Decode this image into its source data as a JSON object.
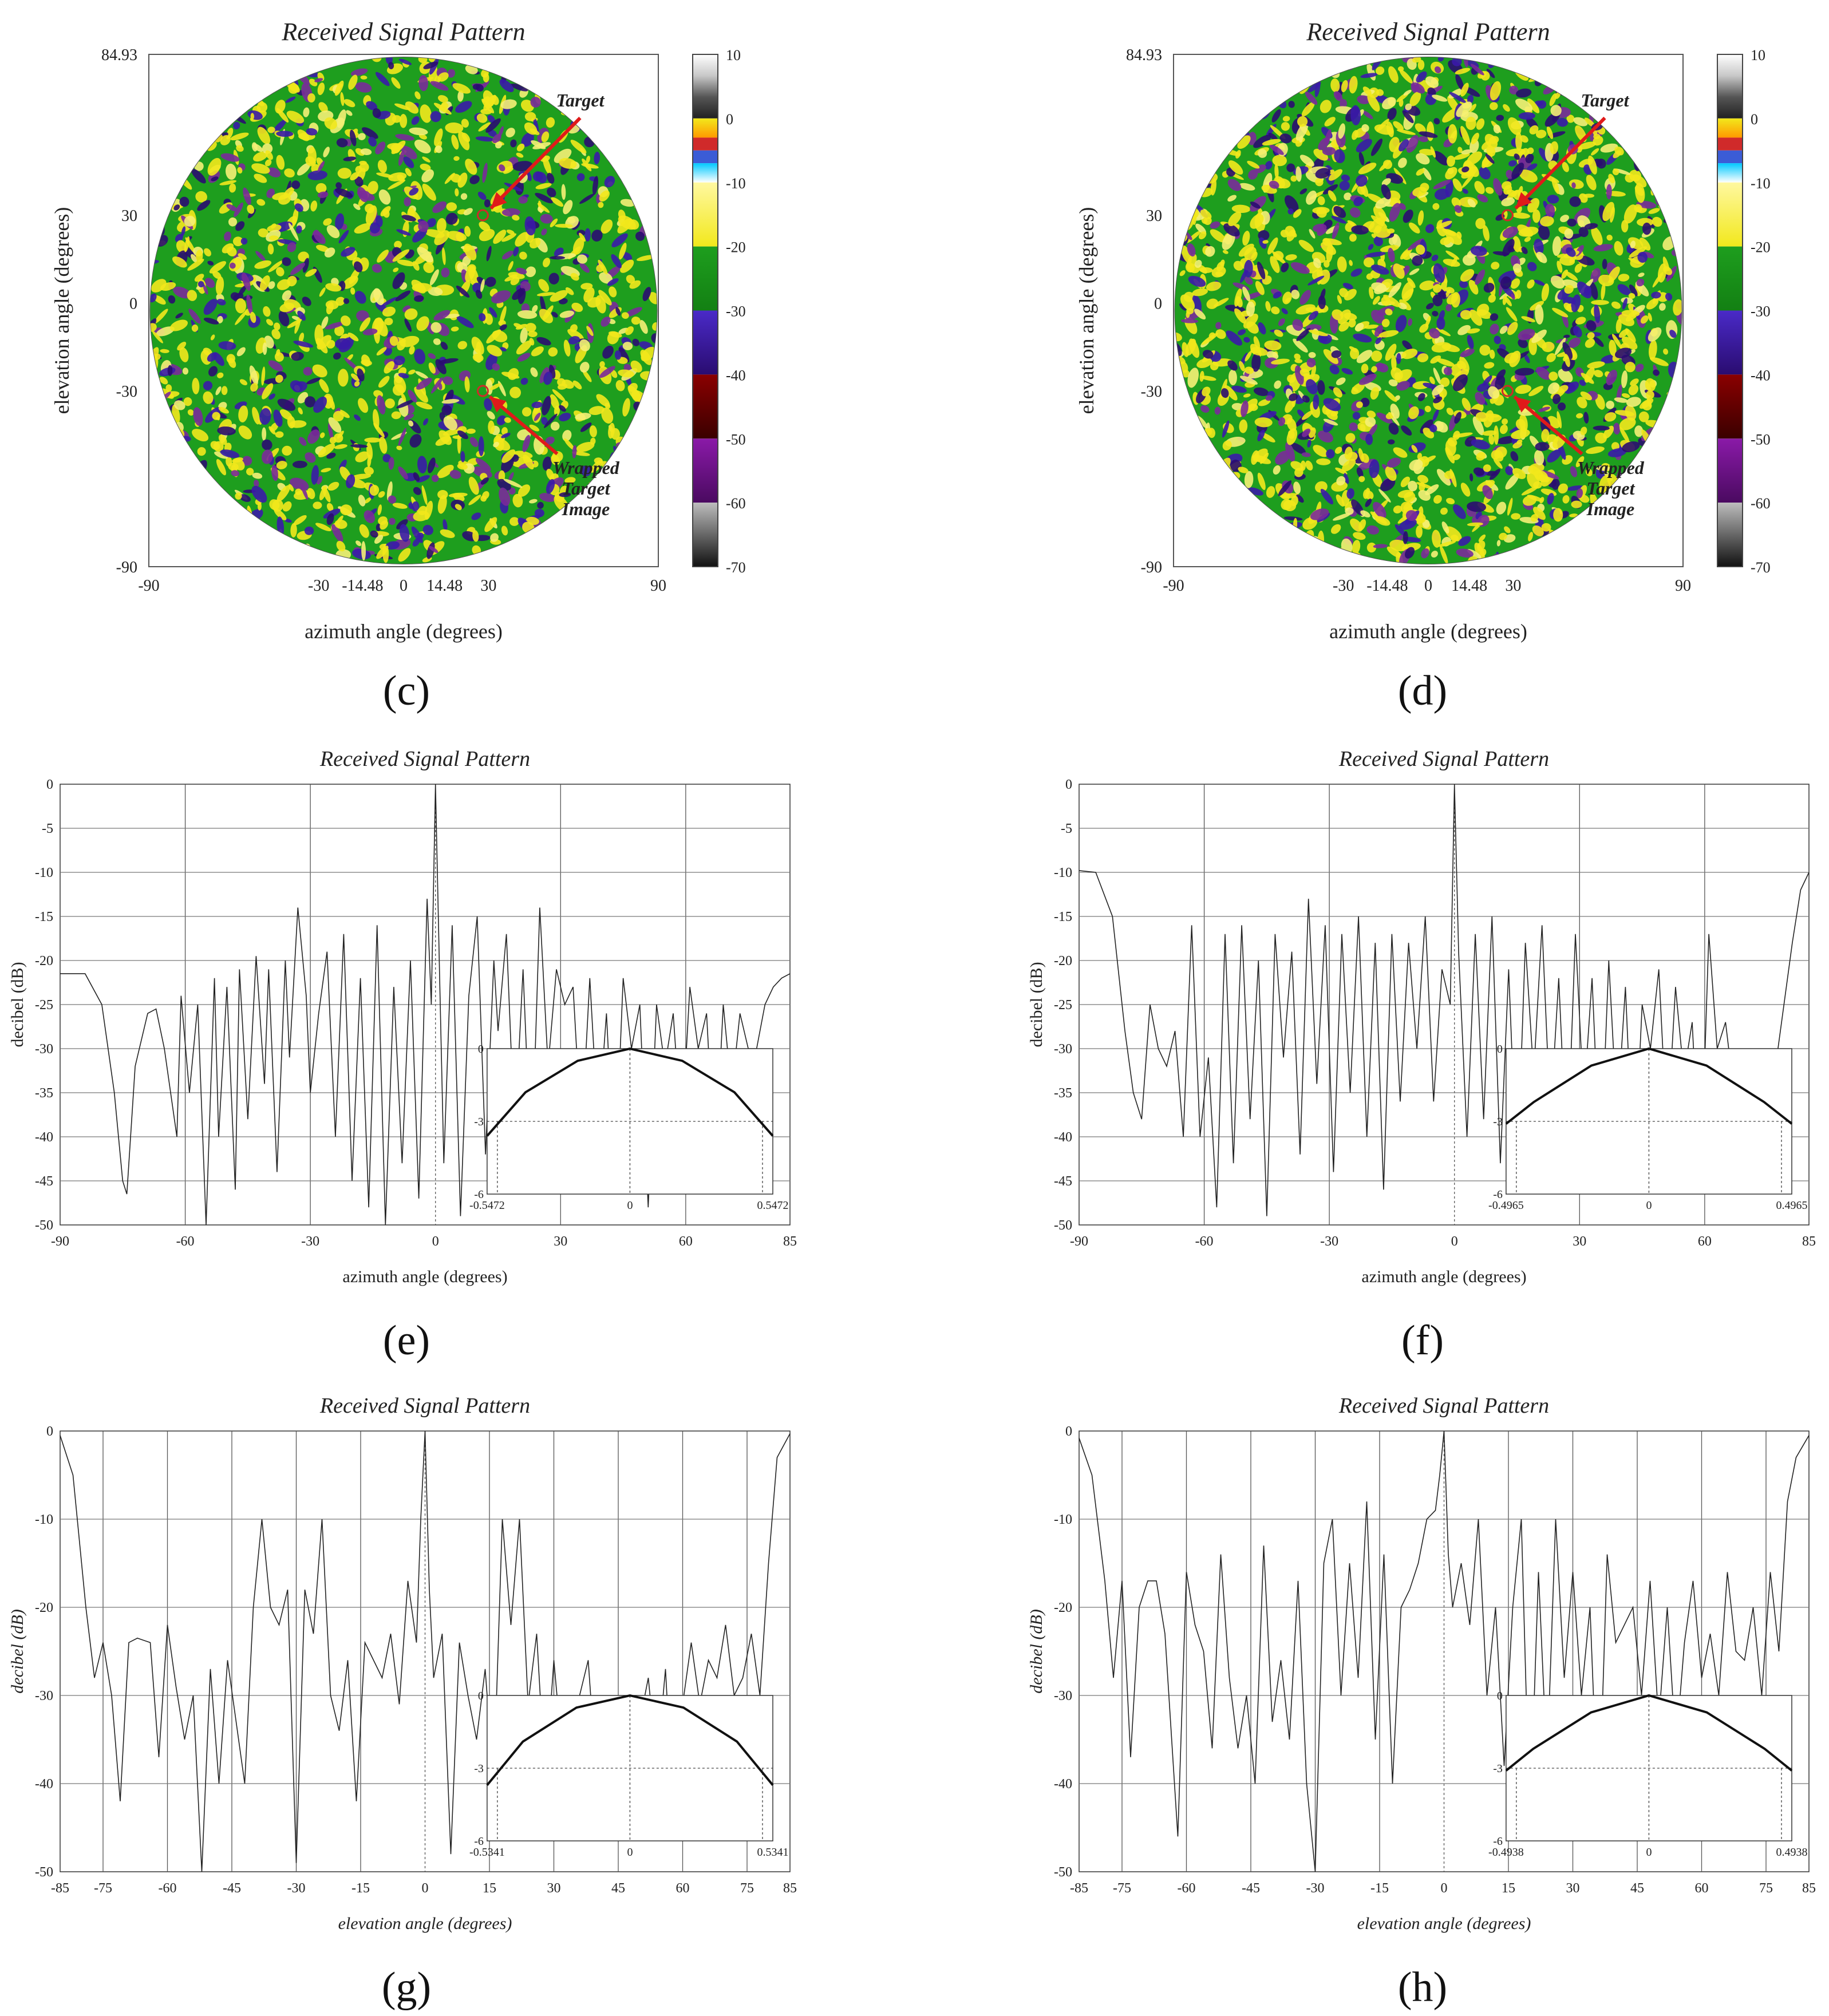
{
  "figure": {
    "panels": [
      "c",
      "d",
      "e",
      "f",
      "g",
      "h"
    ]
  },
  "chart_data": [
    {
      "id": "c",
      "type": "heatmap",
      "caption": "(c)",
      "title": "Received Signal Pattern",
      "xlabel": "azimuth angle (degrees)",
      "ylabel": "elevation angle (degrees)",
      "xlim": [
        -90,
        90
      ],
      "ylim": [
        -90,
        84.93
      ],
      "xticks": [
        -90,
        -30,
        -14.48,
        0,
        14.48,
        30,
        90
      ],
      "yticks": [
        84.93,
        30,
        0,
        -30,
        -90
      ],
      "colorbar": {
        "min": -70,
        "max": 10,
        "ticks": [
          10,
          0,
          -10,
          -20,
          -30,
          -40,
          -50,
          -60,
          -70
        ]
      },
      "colormap": [
        "#111111",
        "#a8a8a8",
        "#6a0a8e",
        "#5b0000",
        "#3a1aa8",
        "#1e9e1e",
        "#f2e81c",
        "#d02a2a",
        "#3b5cd6",
        "#fff8c8",
        "#ffffff"
      ],
      "annotations": [
        {
          "text": "Target",
          "point": [
            28,
            30
          ],
          "arrow_color": "#e01a1a"
        },
        {
          "text_lines": [
            "Wrapped",
            "Target",
            "Image"
          ],
          "point": [
            28,
            -30
          ],
          "arrow_color": "#e01a1a"
        }
      ],
      "markers": [
        {
          "x": 28,
          "y": 30
        },
        {
          "x": 28,
          "y": -30
        }
      ]
    },
    {
      "id": "d",
      "type": "heatmap",
      "caption": "(d)",
      "title": "Received Signal Pattern",
      "xlabel": "azimuth angle (degrees)",
      "ylabel": "elevation angle (degrees)",
      "xlim": [
        -90,
        90
      ],
      "ylim": [
        -90,
        84.93
      ],
      "xticks": [
        -90,
        -30,
        -14.48,
        0,
        14.48,
        30,
        90
      ],
      "yticks": [
        84.93,
        30,
        0,
        -30,
        -90
      ],
      "colorbar": {
        "min": -70,
        "max": 10,
        "ticks": [
          10,
          0,
          -10,
          -20,
          -30,
          -40,
          -50,
          -60,
          -70
        ]
      },
      "colormap": [
        "#111111",
        "#a8a8a8",
        "#6a0a8e",
        "#5b0000",
        "#3a1aa8",
        "#1e9e1e",
        "#f2e81c",
        "#d02a2a",
        "#3b5cd6",
        "#fff8c8",
        "#ffffff"
      ],
      "annotations": [
        {
          "text": "Target",
          "point": [
            28,
            30
          ],
          "arrow_color": "#e01a1a"
        },
        {
          "text_lines": [
            "Wrapped",
            "Target",
            "Image"
          ],
          "point": [
            28,
            -30
          ],
          "arrow_color": "#e01a1a"
        }
      ],
      "markers": [
        {
          "x": 28,
          "y": 30
        },
        {
          "x": 28,
          "y": -30
        }
      ]
    },
    {
      "id": "e",
      "type": "line",
      "caption": "(e)",
      "title": "Received Signal Pattern",
      "xlabel": "azimuth angle (degrees)",
      "ylabel": "decibel (dB)",
      "italic_labels": false,
      "xlim": [
        -90,
        85
      ],
      "ylim": [
        -50,
        0
      ],
      "xticks": [
        -90,
        -60,
        -30,
        0,
        30,
        60,
        85
      ],
      "yticks": [
        0,
        -5,
        -10,
        -15,
        -20,
        -25,
        -30,
        -35,
        -40,
        -45,
        -50
      ],
      "series": [
        {
          "x": [
            -90,
            -84,
            -80,
            -77,
            -75,
            -74,
            -72,
            -69,
            -67,
            -65,
            -62,
            -61,
            -59,
            -57,
            -55,
            -53,
            -52,
            -50,
            -48,
            -47,
            -45,
            -43,
            -41,
            -40,
            -38,
            -36,
            -35,
            -33,
            -31,
            -30,
            -28,
            -26,
            -24,
            -22,
            -20,
            -18,
            -16,
            -14,
            -12,
            -10,
            -8,
            -6,
            -4,
            -2,
            -1,
            0,
            1,
            2,
            4,
            6,
            8,
            10,
            12,
            14,
            15,
            17,
            19,
            21,
            23,
            25,
            27,
            29,
            31,
            33,
            35,
            37,
            39,
            41,
            43,
            45,
            47,
            49,
            51,
            53,
            55,
            57,
            59,
            61,
            63,
            65,
            67,
            69,
            71,
            73,
            75,
            77,
            79,
            81,
            83,
            85
          ],
          "values": [
            -21.5,
            -21.5,
            -25,
            -35,
            -45,
            -46.5,
            -32,
            -26,
            -25.5,
            -30,
            -40,
            -24,
            -35,
            -25,
            -50,
            -22,
            -40,
            -23,
            -46,
            -21,
            -38,
            -19.5,
            -34,
            -21,
            -44,
            -20,
            -31,
            -14,
            -24,
            -35,
            -26,
            -19,
            -40,
            -17,
            -45,
            -22,
            -48,
            -16,
            -50,
            -23,
            -43,
            -20,
            -47,
            -13,
            -25,
            0,
            -22,
            -43,
            -16,
            -49,
            -24,
            -15,
            -42,
            -20,
            -28,
            -17,
            -40,
            -21,
            -44,
            -14,
            -32,
            -21,
            -25,
            -23,
            -40,
            -22,
            -39,
            -26,
            -45,
            -22,
            -30,
            -25,
            -48,
            -25,
            -32,
            -26,
            -40,
            -23,
            -30,
            -26,
            -44,
            -25,
            -35,
            -26,
            -30,
            -30,
            -25,
            -23,
            -22,
            -21.5
          ]
        }
      ],
      "inset": {
        "xlim": [
          -0.5472,
          0.5472
        ],
        "ylim": [
          -6,
          0
        ],
        "xticks": [
          -0.5472,
          0,
          0.5472
        ],
        "yticks": [
          0,
          -3,
          -6
        ],
        "x": [
          -0.5472,
          -0.4,
          -0.2,
          0,
          0.2,
          0.4,
          0.5472
        ],
        "values": [
          -3.6,
          -1.8,
          -0.5,
          0,
          -0.5,
          -1.8,
          -3.6
        ]
      }
    },
    {
      "id": "f",
      "type": "line",
      "caption": "(f)",
      "title": "Received Signal Pattern",
      "xlabel": "azimuth angle (degrees)",
      "ylabel": "decibel (dB)",
      "italic_labels": false,
      "xlim": [
        -90,
        85
      ],
      "ylim": [
        -50,
        0
      ],
      "xticks": [
        -90,
        -60,
        -30,
        0,
        30,
        60,
        85
      ],
      "yticks": [
        0,
        -5,
        -10,
        -15,
        -20,
        -25,
        -30,
        -35,
        -40,
        -45,
        -50
      ],
      "series": [
        {
          "x": [
            -90,
            -86,
            -82,
            -79,
            -77,
            -75,
            -73,
            -71,
            -69,
            -67,
            -65,
            -63,
            -61,
            -59,
            -57,
            -55,
            -53,
            -51,
            -49,
            -47,
            -45,
            -43,
            -41,
            -39,
            -37,
            -35,
            -33,
            -31,
            -29,
            -27,
            -25,
            -23,
            -21,
            -19,
            -17,
            -15,
            -13,
            -11,
            -9,
            -7,
            -5,
            -3,
            -1,
            0,
            1,
            3,
            5,
            7,
            9,
            11,
            13,
            15,
            17,
            19,
            21,
            23,
            25,
            27,
            29,
            31,
            33,
            35,
            37,
            39,
            41,
            43,
            45,
            47,
            49,
            51,
            53,
            55,
            57,
            59,
            61,
            63,
            65,
            67,
            69,
            71,
            73,
            75,
            77,
            79,
            81,
            83,
            85
          ],
          "values": [
            -9.8,
            -10,
            -15,
            -28,
            -35,
            -38,
            -25,
            -30,
            -32,
            -28,
            -40,
            -16,
            -40,
            -31,
            -48,
            -17,
            -43,
            -16,
            -38,
            -20,
            -49,
            -17,
            -31,
            -19,
            -42,
            -13,
            -34,
            -16,
            -44,
            -17,
            -35,
            -15,
            -40,
            -18,
            -46,
            -17,
            -36,
            -18,
            -30,
            -15,
            -36,
            -21,
            -25,
            0,
            -19,
            -40,
            -17,
            -38,
            -15,
            -43,
            -21,
            -45,
            -18,
            -33,
            -16,
            -38,
            -22,
            -43,
            -17,
            -36,
            -22,
            -44,
            -20,
            -38,
            -23,
            -45,
            -25,
            -30,
            -21,
            -40,
            -23,
            -33,
            -27,
            -46,
            -17,
            -30,
            -27,
            -35,
            -30,
            -33,
            -32,
            -34,
            -32,
            -25,
            -18,
            -12,
            -10
          ]
        }
      ],
      "inset": {
        "xlim": [
          -0.4965,
          0.4965
        ],
        "ylim": [
          -6,
          0
        ],
        "xticks": [
          -0.4965,
          0,
          0.4965
        ],
        "yticks": [
          0,
          -3,
          -6
        ],
        "x": [
          -0.4965,
          -0.4,
          -0.2,
          0,
          0.2,
          0.4,
          0.4965
        ],
        "values": [
          -3.1,
          -2.2,
          -0.7,
          0,
          -0.7,
          -2.2,
          -3.1
        ]
      }
    },
    {
      "id": "g",
      "type": "line",
      "caption": "(g)",
      "title": "Received Signal Pattern",
      "xlabel": "elevation angle (degrees)",
      "ylabel": "decibel (dB)",
      "italic_labels": true,
      "xlim": [
        -85,
        85
      ],
      "ylim": [
        -50,
        0
      ],
      "xticks": [
        -85,
        -75,
        -60,
        -45,
        -30,
        -15,
        0,
        15,
        30,
        45,
        60,
        75,
        85
      ],
      "yticks": [
        0,
        -10,
        -20,
        -30,
        -40,
        -50
      ],
      "series": [
        {
          "x": [
            -85,
            -82,
            -79,
            -77,
            -75,
            -73,
            -71,
            -69,
            -67,
            -64,
            -62,
            -60,
            -58,
            -56,
            -54,
            -52,
            -50,
            -48,
            -46,
            -44,
            -42,
            -40,
            -38,
            -36,
            -34,
            -32,
            -30,
            -28,
            -26,
            -24,
            -22,
            -20,
            -18,
            -16,
            -14,
            -12,
            -10,
            -8,
            -6,
            -4,
            -2,
            -1,
            0,
            1,
            2,
            4,
            6,
            8,
            10,
            12,
            14,
            16,
            18,
            20,
            22,
            24,
            26,
            28,
            30,
            32,
            34,
            36,
            38,
            40,
            42,
            44,
            46,
            48,
            50,
            52,
            54,
            56,
            58,
            60,
            62,
            64,
            66,
            68,
            70,
            72,
            74,
            76,
            78,
            80,
            82,
            85
          ],
          "values": [
            -0.5,
            -5,
            -20,
            -28,
            -24,
            -30,
            -42,
            -24,
            -23.5,
            -24,
            -37,
            -22,
            -29,
            -35,
            -30,
            -50,
            -27,
            -40,
            -26,
            -33,
            -40,
            -20,
            -10,
            -20,
            -22,
            -18,
            -49,
            -18,
            -23,
            -10,
            -30,
            -34,
            -26,
            -42,
            -24,
            -26,
            -28,
            -23,
            -31,
            -17,
            -24,
            -10,
            0,
            -18,
            -28,
            -23,
            -48,
            -24,
            -30,
            -35,
            -27,
            -40,
            -10,
            -22,
            -10,
            -31,
            -23,
            -40,
            -26,
            -37,
            -33,
            -30,
            -26,
            -40,
            -30,
            -42,
            -30,
            -46,
            -33,
            -28,
            -38,
            -27,
            -45,
            -31,
            -24,
            -31,
            -26,
            -28,
            -22,
            -30,
            -28,
            -23,
            -30,
            -15,
            -3,
            -0.3
          ]
        }
      ],
      "inset": {
        "xlim": [
          -0.5341,
          0.5341
        ],
        "ylim": [
          -6,
          0
        ],
        "xticks": [
          -0.5341,
          0,
          0.5341
        ],
        "yticks": [
          0,
          -3,
          -6
        ],
        "x": [
          -0.5341,
          -0.4,
          -0.2,
          0,
          0.2,
          0.4,
          0.5341
        ],
        "values": [
          -3.7,
          -1.9,
          -0.5,
          0,
          -0.5,
          -1.9,
          -3.7
        ]
      }
    },
    {
      "id": "h",
      "type": "line",
      "caption": "(h)",
      "title": "Received Signal Pattern",
      "xlabel": "elevation angle (degrees)",
      "ylabel": "decibel (dB)",
      "italic_labels": true,
      "xlim": [
        -85,
        85
      ],
      "ylim": [
        -50,
        0
      ],
      "xticks": [
        -85,
        -75,
        -60,
        -45,
        -30,
        -15,
        0,
        15,
        30,
        45,
        60,
        75,
        85
      ],
      "yticks": [
        0,
        -10,
        -20,
        -30,
        -40,
        -50
      ],
      "series": [
        {
          "x": [
            -85,
            -82,
            -79,
            -77,
            -75,
            -73,
            -71,
            -69,
            -67,
            -65,
            -62,
            -60,
            -58,
            -56,
            -54,
            -52,
            -50,
            -48,
            -46,
            -44,
            -42,
            -40,
            -38,
            -36,
            -34,
            -32,
            -30,
            -28,
            -26,
            -24,
            -22,
            -20,
            -18,
            -16,
            -14,
            -12,
            -10,
            -8,
            -6,
            -4,
            -2,
            -1,
            0,
            1,
            2,
            4,
            6,
            8,
            10,
            12,
            14,
            16,
            18,
            20,
            22,
            24,
            26,
            28,
            30,
            32,
            34,
            36,
            38,
            40,
            42,
            44,
            46,
            48,
            50,
            52,
            54,
            56,
            58,
            60,
            62,
            64,
            66,
            68,
            70,
            72,
            74,
            76,
            78,
            80,
            82,
            85
          ],
          "values": [
            -0.8,
            -5,
            -17,
            -28,
            -17,
            -37,
            -20,
            -17,
            -17,
            -23,
            -46,
            -16,
            -22,
            -25,
            -36,
            -14,
            -28,
            -36,
            -30,
            -40,
            -13,
            -33,
            -26,
            -35,
            -17,
            -40,
            -50,
            -15,
            -10,
            -30,
            -15,
            -28,
            -8,
            -35,
            -14,
            -40,
            -20,
            -18,
            -15,
            -10,
            -9,
            -5,
            0,
            -14,
            -20,
            -15,
            -22,
            -10,
            -30,
            -20,
            -38,
            -20,
            -10,
            -45,
            -16,
            -38,
            -10,
            -28,
            -16,
            -30,
            -20,
            -45,
            -14,
            -24,
            -22,
            -20,
            -30,
            -17,
            -33,
            -20,
            -36,
            -24,
            -17,
            -28,
            -23,
            -30,
            -16,
            -25,
            -26,
            -20,
            -30,
            -16,
            -25,
            -8,
            -3,
            -0.5
          ]
        }
      ],
      "inset": {
        "xlim": [
          -0.4938,
          0.4938
        ],
        "ylim": [
          -6,
          0
        ],
        "xticks": [
          -0.4938,
          0,
          0.4938
        ],
        "yticks": [
          0,
          -3,
          -6
        ],
        "x": [
          -0.4938,
          -0.4,
          -0.2,
          0,
          0.2,
          0.4,
          0.4938
        ],
        "values": [
          -3.1,
          -2.2,
          -0.7,
          0,
          -0.7,
          -2.2,
          -3.1
        ]
      }
    }
  ]
}
